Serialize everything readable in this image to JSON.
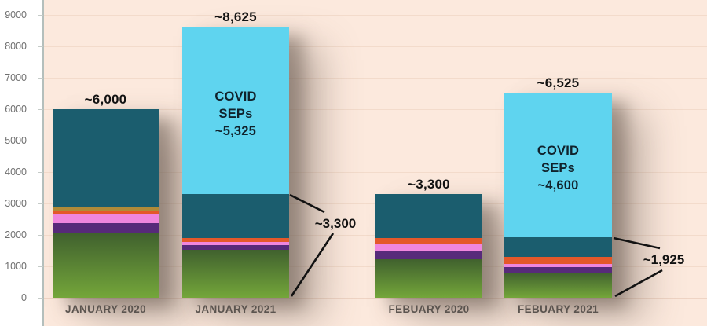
{
  "chart_data": {
    "type": "bar",
    "subtype": "stacked-bar",
    "title": "",
    "xlabel": "",
    "ylabel": "",
    "grid": true,
    "legend": "none",
    "y_axis": {
      "min": 0,
      "max": 9000,
      "step": 1000,
      "tick_labels": [
        "0",
        "1000",
        "2000",
        "3000",
        "4000",
        "5000",
        "6000",
        "7000",
        "8000",
        "9000"
      ]
    },
    "segment_colors": {
      "green_top": "#40612e",
      "green_bottom": "#74a63a",
      "purple": "#572a7a",
      "pink": "#ef86de",
      "orange": "#e4582a",
      "gold": "#b08a38",
      "teal": "#1b5d6e",
      "covid": "#5fd4ef"
    },
    "background_color": "#fce9dd",
    "bars": [
      {
        "label": "JANUARY 2020",
        "total": 6000,
        "total_label": "~6,000",
        "segments": [
          {
            "name": "green",
            "value": 2050
          },
          {
            "name": "purple",
            "value": 325
          },
          {
            "name": "pink",
            "value": 300
          },
          {
            "name": "orange",
            "value": 100
          },
          {
            "name": "gold",
            "value": 100
          },
          {
            "name": "teal",
            "value": 3125
          }
        ]
      },
      {
        "label": "JANUARY 2021",
        "total": 8625,
        "total_label": "~8,625",
        "covid_label_lines": [
          "COVID",
          "SEPs",
          "~5,325"
        ],
        "segments": [
          {
            "name": "green",
            "value": 1525
          },
          {
            "name": "purple",
            "value": 150
          },
          {
            "name": "pink",
            "value": 100
          },
          {
            "name": "orange",
            "value": 125
          },
          {
            "name": "teal",
            "value": 1400
          },
          {
            "name": "covid",
            "value": 5325
          }
        ]
      },
      {
        "label": "FEBUARY 2020",
        "total": 3300,
        "total_label": "~3,300",
        "segments": [
          {
            "name": "green",
            "value": 1225
          },
          {
            "name": "purple",
            "value": 250
          },
          {
            "name": "pink",
            "value": 250
          },
          {
            "name": "orange",
            "value": 175
          },
          {
            "name": "teal",
            "value": 1400
          }
        ]
      },
      {
        "label": "FEBUARY 2021",
        "total": 6525,
        "total_label": "~6,525",
        "covid_label_lines": [
          "COVID",
          "SEPs",
          "~4,600"
        ],
        "segments": [
          {
            "name": "green",
            "value": 800
          },
          {
            "name": "purple",
            "value": 175
          },
          {
            "name": "pink",
            "value": 100
          },
          {
            "name": "orange",
            "value": 225
          },
          {
            "name": "teal",
            "value": 625
          },
          {
            "name": "covid",
            "value": 4600
          }
        ]
      }
    ],
    "annotations": [
      {
        "text": "~3,300",
        "meaning": "non-COVID total for JANUARY 2021",
        "points_to_bar": 1,
        "range": [
          0,
          3300
        ]
      },
      {
        "text": "~1,925",
        "meaning": "non-COVID total for FEBUARY 2021",
        "points_to_bar": 3,
        "range": [
          0,
          1925
        ]
      }
    ]
  }
}
